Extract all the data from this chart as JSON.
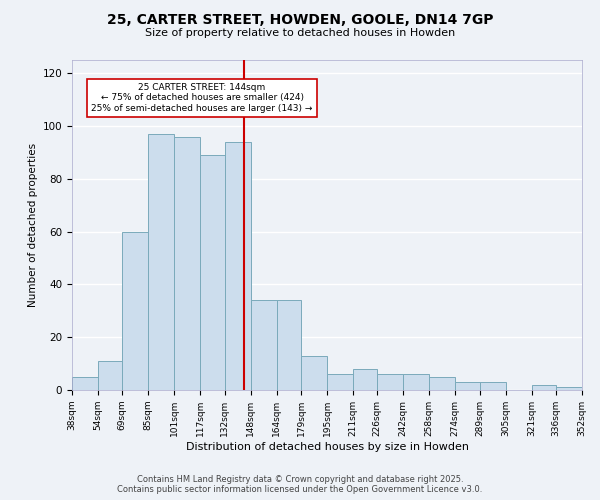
{
  "title": "25, CARTER STREET, HOWDEN, GOOLE, DN14 7GP",
  "subtitle": "Size of property relative to detached houses in Howden",
  "xlabel": "Distribution of detached houses by size in Howden",
  "ylabel": "Number of detached properties",
  "bar_color": "#ccdded",
  "bar_edge_color": "#7aaabb",
  "background_color": "#eef2f7",
  "grid_color": "#ffffff",
  "bins": [
    38,
    54,
    69,
    85,
    101,
    117,
    132,
    148,
    164,
    179,
    195,
    211,
    226,
    242,
    258,
    274,
    289,
    305,
    321,
    336,
    352
  ],
  "bin_labels": [
    "38sqm",
    "54sqm",
    "69sqm",
    "85sqm",
    "101sqm",
    "117sqm",
    "132sqm",
    "148sqm",
    "164sqm",
    "179sqm",
    "195sqm",
    "211sqm",
    "226sqm",
    "242sqm",
    "258sqm",
    "274sqm",
    "289sqm",
    "305sqm",
    "321sqm",
    "336sqm",
    "352sqm"
  ],
  "counts": [
    5,
    11,
    60,
    97,
    96,
    89,
    94,
    34,
    34,
    13,
    6,
    8,
    6,
    6,
    5,
    3,
    3,
    0,
    2,
    1
  ],
  "vline_x": 144,
  "vline_color": "#cc0000",
  "annotation_line1": "25 CARTER STREET: 144sqm",
  "annotation_line2": "← 75% of detached houses are smaller (424)",
  "annotation_line3": "25% of semi-detached houses are larger (143) →",
  "annotation_box_color": "#ffffff",
  "annotation_box_edge": "#cc0000",
  "ylim": [
    0,
    125
  ],
  "yticks": [
    0,
    20,
    40,
    60,
    80,
    100,
    120
  ],
  "footer_line1": "Contains HM Land Registry data © Crown copyright and database right 2025.",
  "footer_line2": "Contains public sector information licensed under the Open Government Licence v3.0."
}
